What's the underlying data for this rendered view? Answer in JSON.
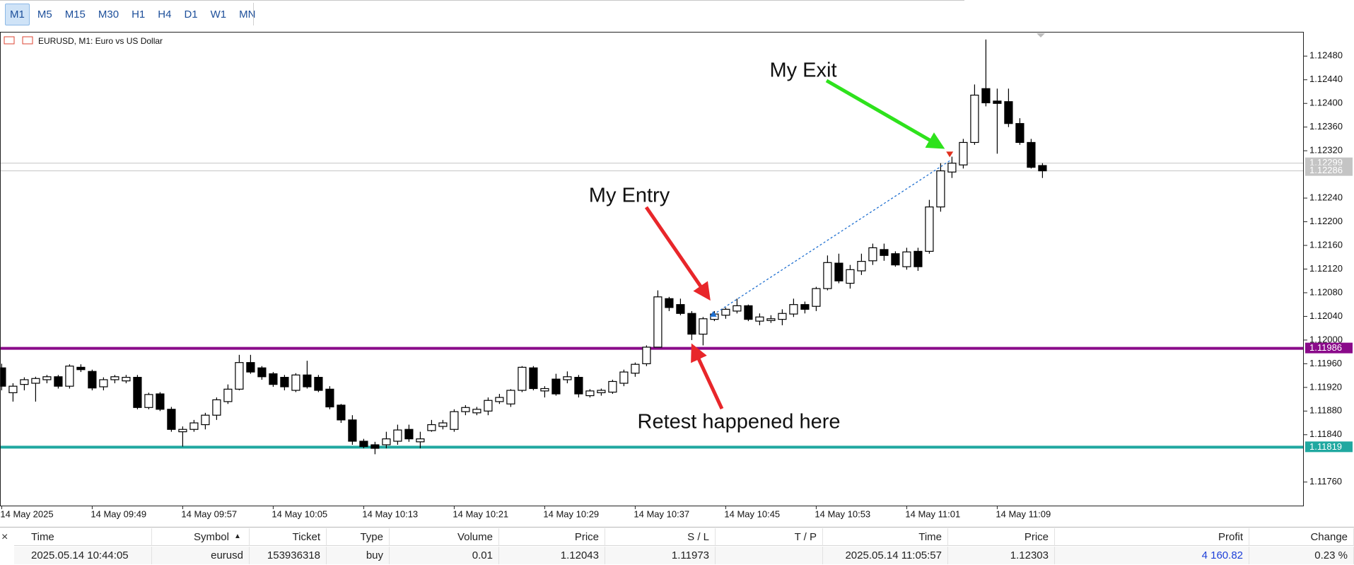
{
  "toolbar": {
    "timeframes": [
      "M1",
      "M5",
      "M15",
      "M30",
      "H1",
      "H4",
      "D1",
      "W1",
      "MN"
    ]
  },
  "chart_data": {
    "type": "candlestick",
    "title": "EURUSD, M1:  Euro vs US Dollar",
    "annotations": [
      "My Exit",
      "My Entry",
      "Retest happened here"
    ],
    "categories": [
      "14 May 2025",
      null,
      null,
      null,
      null,
      null,
      null,
      null,
      "14 May 09:49",
      null,
      null,
      null,
      null,
      null,
      null,
      null,
      "14 May 09:57",
      null,
      null,
      null,
      null,
      null,
      null,
      null,
      "14 May 10:05",
      null,
      null,
      null,
      null,
      null,
      null,
      null,
      "14 May 10:13",
      null,
      null,
      null,
      null,
      null,
      null,
      null,
      "14 May 10:21",
      null,
      null,
      null,
      null,
      null,
      null,
      null,
      "14 May 10:29",
      null,
      null,
      null,
      null,
      null,
      null,
      null,
      "14 May 10:37",
      null,
      null,
      null,
      null,
      null,
      null,
      null,
      "14 May 10:45",
      null,
      null,
      null,
      null,
      null,
      null,
      null,
      "14 May 10:53",
      null,
      null,
      null,
      null,
      null,
      null,
      null,
      "14 May 11:01",
      null,
      null,
      null,
      null,
      null,
      null,
      null,
      "14 May 11:09",
      null,
      null,
      null,
      null
    ],
    "open": [
      1.11953,
      1.11911,
      1.11925,
      1.11927,
      1.11933,
      1.11938,
      1.11922,
      1.11954,
      1.11947,
      1.11921,
      1.11933,
      1.11931,
      1.11937,
      1.11886,
      1.11909,
      1.11883,
      1.11845,
      1.11849,
      1.11857,
      1.11873,
      1.11896,
      1.11917,
      1.11962,
      1.11953,
      1.11943,
      1.11937,
      1.11915,
      1.11941,
      1.11937,
      1.11917,
      1.1189,
      1.11865,
      1.11829,
      1.11823,
      1.11823,
      1.11829,
      1.11849,
      1.11828,
      1.11847,
      1.11854,
      1.11849,
      1.11879,
      1.11877,
      1.1188,
      1.11896,
      1.11892,
      1.11915,
      1.11953,
      1.11914,
      1.11934,
      1.11933,
      1.11937,
      1.11906,
      1.11911,
      1.11912,
      1.11927,
      1.11944,
      1.1196,
      1.11988,
      1.1207,
      1.1206,
      1.12045,
      1.1201,
      1.12035,
      1.12042,
      1.12049,
      1.12058,
      1.12032,
      1.12033,
      1.12035,
      1.12044,
      1.1206,
      1.12057,
      1.12087,
      1.1213,
      1.12096,
      1.12117,
      1.12134,
      1.12153,
      1.12146,
      1.12124,
      1.1215,
      1.1215,
      1.12225,
      1.12284,
      1.12296,
      1.12334,
      1.12425,
      1.12404,
      1.12403,
      1.12366,
      1.12334,
      1.12295
    ],
    "high": [
      1.1196,
      1.11927,
      1.11937,
      1.11938,
      1.11941,
      1.11941,
      1.11959,
      1.11959,
      1.1195,
      1.11937,
      1.11941,
      1.11941,
      1.11941,
      1.11911,
      1.11912,
      1.11887,
      1.11854,
      1.11865,
      1.11877,
      1.11903,
      1.11925,
      1.11975,
      1.11975,
      1.11956,
      1.11946,
      1.11941,
      1.11944,
      1.11965,
      1.11941,
      1.11922,
      1.11892,
      1.11873,
      1.11833,
      1.11828,
      1.11845,
      1.11857,
      1.11857,
      1.11845,
      1.11865,
      1.11865,
      1.11883,
      1.1189,
      1.11887,
      1.11903,
      1.11909,
      1.11917,
      1.11956,
      1.11956,
      1.11922,
      1.11943,
      1.11947,
      1.11941,
      1.11917,
      1.11918,
      1.11933,
      1.1195,
      1.11962,
      1.11991,
      1.12084,
      1.12073,
      1.1207,
      1.12049,
      1.12039,
      1.12049,
      1.12055,
      1.1207,
      1.1206,
      1.12045,
      1.12042,
      1.12052,
      1.1207,
      1.12065,
      1.1209,
      1.12143,
      1.12146,
      1.12127,
      1.12146,
      1.12163,
      1.12163,
      1.1215,
      1.12156,
      1.12156,
      1.12237,
      1.12299,
      1.1231,
      1.1234,
      1.12432,
      1.12508,
      1.12425,
      1.12425,
      1.12375,
      1.1234,
      1.12299
    ],
    "low": [
      1.11915,
      1.11896,
      1.11915,
      1.11896,
      1.11927,
      1.11918,
      1.11918,
      1.11946,
      1.11915,
      1.11915,
      1.11927,
      1.11927,
      1.11883,
      1.11883,
      1.1188,
      1.11845,
      1.1182,
      1.11845,
      1.11849,
      1.11865,
      1.11892,
      1.11915,
      1.11943,
      1.11933,
      1.11921,
      1.11915,
      1.11912,
      1.11918,
      1.11912,
      1.11883,
      1.1186,
      1.11823,
      1.11817,
      1.11807,
      1.11817,
      1.11823,
      1.11828,
      1.11817,
      1.11845,
      1.11849,
      1.11845,
      1.11873,
      1.11873,
      1.11873,
      1.11892,
      1.11887,
      1.11912,
      1.11915,
      1.11903,
      1.11906,
      1.11927,
      1.11903,
      1.11903,
      1.11906,
      1.11909,
      1.11922,
      1.11938,
      1.11956,
      1.11988,
      1.12049,
      1.12042,
      1.12,
      1.11991,
      1.12032,
      1.12036,
      1.12045,
      1.12032,
      1.12025,
      1.12029,
      1.12025,
      1.12039,
      1.12045,
      1.12049,
      1.12084,
      1.12096,
      1.12087,
      1.1211,
      1.12127,
      1.12134,
      1.12124,
      1.12119,
      1.12117,
      1.12146,
      1.12217,
      1.12274,
      1.1229,
      1.1233,
      1.12395,
      1.12315,
      1.1236,
      1.1233,
      1.1229,
      1.12274
    ],
    "close": [
      1.11922,
      1.11922,
      1.11933,
      1.11935,
      1.11938,
      1.11922,
      1.11956,
      1.1195,
      1.11919,
      1.11933,
      1.11938,
      1.11937,
      1.11886,
      1.11908,
      1.11883,
      1.11849,
      1.11849,
      1.1186,
      1.11873,
      1.11899,
      1.11917,
      1.11962,
      1.11946,
      1.11938,
      1.11925,
      1.11921,
      1.11941,
      1.11921,
      1.11915,
      1.11887,
      1.11865,
      1.11829,
      1.1182,
      1.11817,
      1.11833,
      1.11848,
      1.11833,
      1.11833,
      1.11857,
      1.1186,
      1.11879,
      1.11886,
      1.11883,
      1.11898,
      1.11903,
      1.11915,
      1.11954,
      1.11918,
      1.11918,
      1.11909,
      1.11938,
      1.11909,
      1.11914,
      1.11915,
      1.1193,
      1.11946,
      1.11959,
      1.11988,
      1.12073,
      1.12055,
      1.12045,
      1.1201,
      1.12036,
      1.12044,
      1.12052,
      1.12058,
      1.12035,
      1.12039,
      1.12036,
      1.12045,
      1.1206,
      1.12052,
      1.12087,
      1.12131,
      1.121,
      1.12119,
      1.12133,
      1.12156,
      1.12143,
      1.12127,
      1.12149,
      1.12124,
      1.12225,
      1.12286,
      1.12299,
      1.12334,
      1.12414,
      1.12401,
      1.124,
      1.12366,
      1.12334,
      1.12292,
      1.12286
    ],
    "ylim": [
      1.11719,
      1.12521
    ],
    "yticks": [
      {
        "value": 1.1248,
        "label": "1.12480"
      },
      {
        "value": 1.1244,
        "label": "1.12440"
      },
      {
        "value": 1.124,
        "label": "1.12400"
      },
      {
        "value": 1.1236,
        "label": "1.12360"
      },
      {
        "value": 1.1232,
        "label": "1.12320"
      },
      {
        "value": 1.1224,
        "label": "1.12240"
      },
      {
        "value": 1.122,
        "label": "1.12200"
      },
      {
        "value": 1.1216,
        "label": "1.12160"
      },
      {
        "value": 1.1212,
        "label": "1.12120"
      },
      {
        "value": 1.1208,
        "label": "1.12080"
      },
      {
        "value": 1.1204,
        "label": "1.12040"
      },
      {
        "value": 1.12,
        "label": "1.12000"
      },
      {
        "value": 1.1196,
        "label": "1.11960"
      },
      {
        "value": 1.1192,
        "label": "1.11920"
      },
      {
        "value": 1.1188,
        "label": "1.11880"
      },
      {
        "value": 1.1184,
        "label": "1.11840"
      },
      {
        "value": 1.1176,
        "label": "1.11760"
      }
    ],
    "levels": [
      {
        "value": 1.11986,
        "color": "#8a0a8a"
      },
      {
        "value": 1.11819,
        "color": "#20a8a0"
      }
    ],
    "price_lines": [
      1.12299,
      1.12286
    ],
    "trade": {
      "open_price": 1.12043,
      "close_price": 1.12303
    },
    "bull_color": "#ffffff",
    "bear_color": "#000000"
  },
  "positions_table": {
    "headers": [
      "Time",
      "Symbol",
      "Ticket",
      "Type",
      "Volume",
      "Price",
      "S / L",
      "T / P",
      "Time",
      "Price",
      "Profit",
      "Change"
    ],
    "rows": [
      [
        "2025.05.14 10:44:05",
        "eurusd",
        "153936318",
        "buy",
        "0.01",
        "1.12043",
        "1.11973",
        null,
        "2025.05.14 11:05:57",
        "1.12303",
        "4 160.82",
        "0.23 %"
      ]
    ]
  }
}
